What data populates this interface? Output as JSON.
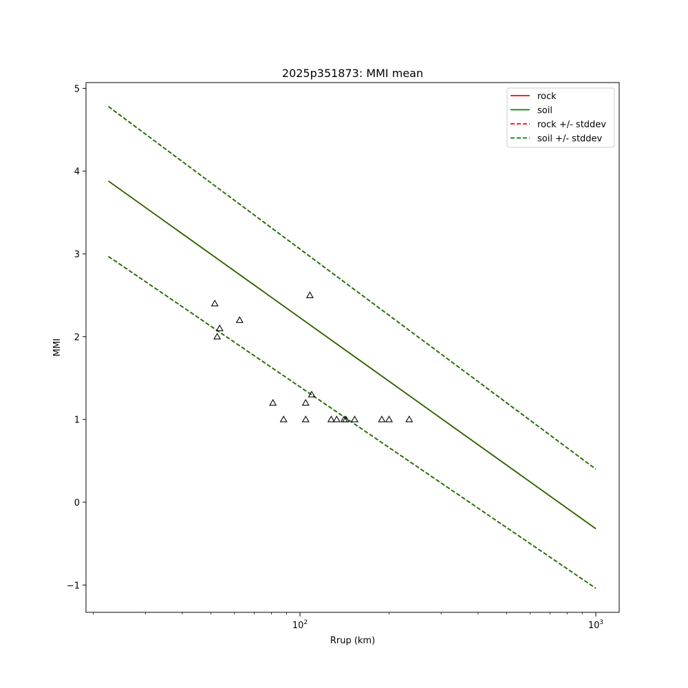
{
  "chart_data": {
    "type": "line",
    "title": "2025p351873: MMI mean",
    "xlabel": "Rrup (km)",
    "ylabel": "MMI",
    "x_scale": "log",
    "xlim": [
      18.9,
      1200
    ],
    "ylim": [
      -1.33,
      5.07
    ],
    "y_ticks": [
      -1,
      0,
      1,
      2,
      3,
      4,
      5
    ],
    "y_tick_labels": [
      "−1",
      "0",
      "1",
      "2",
      "3",
      "4",
      "5"
    ],
    "x_major_ticks": [
      100,
      1000
    ],
    "x_tick_labels": [
      {
        "base": "10",
        "exp": "2"
      },
      {
        "base": "10",
        "exp": "3"
      }
    ],
    "x_minor_ticks": [
      20,
      30,
      40,
      50,
      60,
      70,
      80,
      90,
      200,
      300,
      400,
      500,
      600,
      700,
      800,
      900
    ],
    "grid": false,
    "legend_position": "upper right",
    "series": [
      {
        "name": "rock",
        "style": "solid",
        "color": "#ff0000",
        "x": [
          22.5,
          1000
        ],
        "y": [
          3.88,
          -0.32
        ]
      },
      {
        "name": "soil",
        "style": "solid",
        "color": "#008000",
        "x": [
          22.5,
          1000
        ],
        "y": [
          3.88,
          -0.32
        ]
      },
      {
        "name": "rock +/- stddev",
        "style": "dashed",
        "color": "#ff0000",
        "x": [
          22.5,
          1000
        ],
        "upper": [
          4.78,
          0.4
        ],
        "lower": [
          2.97,
          -1.04
        ]
      },
      {
        "name": "soil +/- stddev",
        "style": "dashed",
        "color": "#008000",
        "x": [
          22.5,
          1000
        ],
        "upper": [
          4.78,
          0.4
        ],
        "lower": [
          2.97,
          -1.04
        ]
      }
    ],
    "overlap_color": "#246d00",
    "observations": {
      "marker": "triangle",
      "color": "#000000",
      "points": [
        {
          "x": 51.5,
          "y": 2.4
        },
        {
          "x": 52.5,
          "y": 2.0
        },
        {
          "x": 53.5,
          "y": 2.1
        },
        {
          "x": 62.5,
          "y": 2.2
        },
        {
          "x": 81.0,
          "y": 1.2
        },
        {
          "x": 88.0,
          "y": 1.0
        },
        {
          "x": 104.5,
          "y": 1.2
        },
        {
          "x": 104.5,
          "y": 1.0
        },
        {
          "x": 108.0,
          "y": 2.5
        },
        {
          "x": 109.5,
          "y": 1.3
        },
        {
          "x": 127.5,
          "y": 1.0
        },
        {
          "x": 133.0,
          "y": 1.0
        },
        {
          "x": 141.0,
          "y": 1.0
        },
        {
          "x": 143.0,
          "y": 1.0
        },
        {
          "x": 153.0,
          "y": 1.0
        },
        {
          "x": 189.0,
          "y": 1.0
        },
        {
          "x": 200.0,
          "y": 1.0
        },
        {
          "x": 234.0,
          "y": 1.0
        }
      ]
    }
  }
}
